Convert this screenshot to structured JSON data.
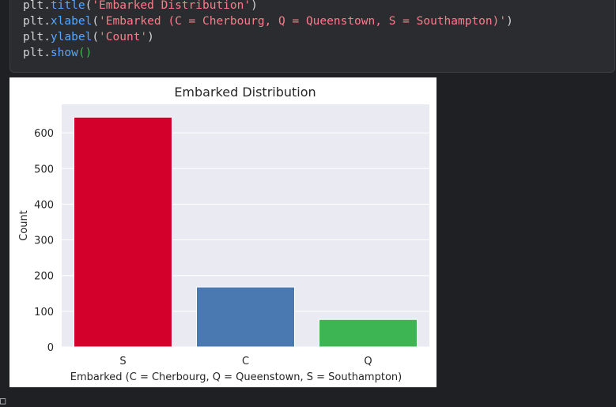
{
  "code_lines": [
    [
      {
        "t": "plt.",
        "c": "plain"
      },
      {
        "t": "title",
        "c": "fn"
      },
      {
        "t": "(",
        "c": "paren"
      },
      {
        "t": "'Embarked Distribution'",
        "c": "str"
      },
      {
        "t": ")",
        "c": "paren"
      }
    ],
    [
      {
        "t": "plt.",
        "c": "plain"
      },
      {
        "t": "xlabel",
        "c": "fn"
      },
      {
        "t": "(",
        "c": "paren"
      },
      {
        "t": "'Embarked (C = Cherbourg, Q = Queenstown, S = Southampton)'",
        "c": "str"
      },
      {
        "t": ")",
        "c": "paren"
      }
    ],
    [
      {
        "t": "plt.",
        "c": "plain"
      },
      {
        "t": "ylabel",
        "c": "fn"
      },
      {
        "t": "(",
        "c": "paren"
      },
      {
        "t": "'Count'",
        "c": "str"
      },
      {
        "t": ")",
        "c": "paren"
      }
    ],
    [
      {
        "t": "plt.",
        "c": "plain"
      },
      {
        "t": "show",
        "c": "fn"
      },
      {
        "t": "()",
        "c": "paren2"
      }
    ]
  ],
  "chart_data": {
    "type": "bar",
    "title": "Embarked Distribution",
    "xlabel": "Embarked (C = Cherbourg, Q = Queenstown, S = Southampton)",
    "ylabel": "Count",
    "categories": [
      "S",
      "C",
      "Q"
    ],
    "values": [
      644,
      168,
      77
    ],
    "colors": [
      "#d4002c",
      "#4a78b0",
      "#3cb552"
    ],
    "ylim": [
      0,
      680
    ],
    "yticks": [
      0,
      100,
      200,
      300,
      400,
      500,
      600
    ],
    "grid": true,
    "background": "#eaeaf2"
  },
  "footer_glyph": "□"
}
